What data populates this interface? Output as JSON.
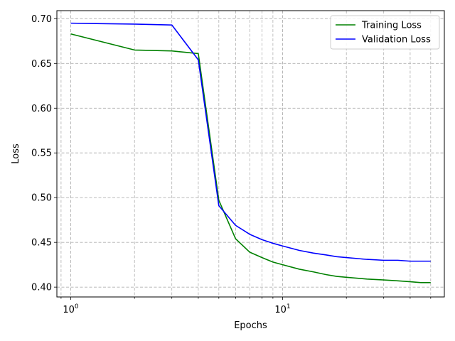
{
  "chart_data": {
    "type": "line",
    "xlabel": "Epochs",
    "ylabel": "Loss",
    "xscale": "log",
    "xlim": [
      0.86,
      58
    ],
    "ylim": [
      0.389,
      0.709
    ],
    "grid": true,
    "grid_which": "both",
    "legend_location": "top-right",
    "x_tick_labels": [
      {
        "value": 1,
        "base": "10",
        "exp": "0"
      },
      {
        "value": 10,
        "base": "10",
        "exp": "1"
      }
    ],
    "y_ticks": [
      0.4,
      0.45,
      0.5,
      0.55,
      0.6,
      0.65,
      0.7
    ],
    "y_tick_labels": [
      "0.40",
      "0.45",
      "0.50",
      "0.55",
      "0.60",
      "0.65",
      "0.70"
    ],
    "x": [
      1,
      2,
      3,
      4,
      5,
      6,
      7,
      8,
      9,
      10,
      12,
      14,
      16,
      18,
      20,
      25,
      30,
      35,
      40,
      45,
      50
    ],
    "series": [
      {
        "name": "Training Loss",
        "color": "#008000",
        "values": [
          0.683,
          0.665,
          0.664,
          0.661,
          0.497,
          0.454,
          0.439,
          0.433,
          0.428,
          0.425,
          0.42,
          0.417,
          0.414,
          0.412,
          0.411,
          0.409,
          0.408,
          0.407,
          0.406,
          0.405,
          0.405
        ]
      },
      {
        "name": "Validation Loss",
        "color": "#0000ff",
        "values": [
          0.695,
          0.694,
          0.693,
          0.654,
          0.491,
          0.469,
          0.459,
          0.453,
          0.449,
          0.446,
          0.441,
          0.438,
          0.436,
          0.434,
          0.433,
          0.431,
          0.43,
          0.43,
          0.429,
          0.429,
          0.429
        ]
      }
    ]
  }
}
